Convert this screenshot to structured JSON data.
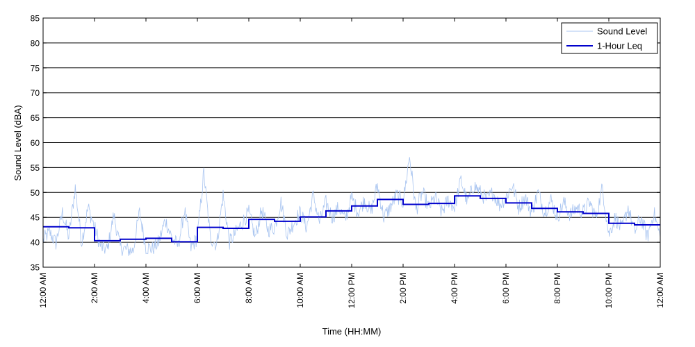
{
  "chart_data": {
    "type": "line",
    "title": "",
    "xlabel": "Time (HH:MM)",
    "ylabel": "Sound Level (dBA)",
    "ylim": [
      35,
      85
    ],
    "xlim": [
      0,
      24
    ],
    "yticks": [
      35,
      40,
      45,
      50,
      55,
      60,
      65,
      70,
      75,
      80,
      85
    ],
    "xticks": [
      0,
      2,
      4,
      6,
      8,
      10,
      12,
      14,
      16,
      18,
      20,
      22,
      24
    ],
    "xtick_labels": [
      "12:00 AM",
      "2:00 AM",
      "4:00 AM",
      "6:00 AM",
      "8:00 AM",
      "10:00 AM",
      "12:00 PM",
      "2:00 PM",
      "4:00 PM",
      "6:00 PM",
      "8:00 PM",
      "10:00 PM",
      "12:00 AM"
    ],
    "grid": "horizontal",
    "legend_position": "top-right",
    "series": [
      {
        "name": "Sound Level",
        "color": "#a8c4f0",
        "style": "thin-line",
        "x": [
          0.0,
          0.25,
          0.5,
          0.75,
          1.0,
          1.25,
          1.5,
          1.75,
          2.0,
          2.25,
          2.5,
          2.75,
          3.0,
          3.25,
          3.5,
          3.75,
          4.0,
          4.25,
          4.5,
          4.75,
          5.0,
          5.25,
          5.5,
          5.75,
          6.0,
          6.25,
          6.5,
          6.75,
          7.0,
          7.25,
          7.5,
          7.75,
          8.0,
          8.25,
          8.5,
          8.75,
          9.0,
          9.25,
          9.5,
          9.75,
          10.0,
          10.25,
          10.5,
          10.75,
          11.0,
          11.25,
          11.5,
          11.75,
          12.0,
          12.25,
          12.5,
          12.75,
          13.0,
          13.25,
          13.5,
          13.75,
          14.0,
          14.25,
          14.5,
          14.75,
          15.0,
          15.25,
          15.5,
          15.75,
          16.0,
          16.25,
          16.5,
          16.75,
          17.0,
          17.25,
          17.5,
          17.75,
          18.0,
          18.25,
          18.5,
          18.75,
          19.0,
          19.25,
          19.5,
          19.75,
          20.0,
          20.25,
          20.5,
          20.75,
          21.0,
          21.25,
          21.5,
          21.75,
          22.0,
          22.25,
          22.5,
          22.75,
          23.0,
          23.25,
          23.5,
          23.75,
          24.0
        ],
        "values": [
          40.5,
          42,
          39.8,
          46,
          41,
          51,
          40,
          47,
          43,
          39,
          38.5,
          45.5,
          39,
          38.5,
          38.3,
          46,
          39,
          38.7,
          40,
          44.5,
          41,
          39.2,
          46.5,
          38.8,
          41,
          54,
          41,
          39.5,
          49.5,
          40,
          42,
          44,
          46,
          41,
          46.5,
          42.5,
          43,
          48,
          41.5,
          44,
          46,
          43,
          49.5,
          44,
          48,
          45,
          47,
          44.5,
          49,
          46,
          48.5,
          46,
          51.5,
          45,
          47,
          49.5,
          48,
          57.3,
          46.5,
          50,
          47,
          49,
          46,
          48.5,
          47,
          52.5,
          48,
          51.5,
          50,
          48.5,
          50,
          47.5,
          49,
          51.5,
          47,
          49,
          46,
          50,
          46,
          48.5,
          45,
          48,
          45.5,
          47,
          46,
          48,
          45,
          51,
          41.5,
          45,
          42.5,
          47,
          42,
          45,
          41,
          46,
          41
        ]
      },
      {
        "name": "1-Hour Leq",
        "color": "#0000cc",
        "style": "step",
        "x": [
          0,
          1,
          2,
          3,
          4,
          5,
          6,
          7,
          8,
          9,
          10,
          11,
          12,
          13,
          14,
          15,
          16,
          17,
          18,
          19,
          20,
          21,
          22,
          23,
          24
        ],
        "values": [
          43.1,
          42.9,
          40.3,
          40.6,
          40.8,
          40.1,
          43.0,
          42.8,
          44.6,
          44.2,
          45.1,
          46.3,
          47.3,
          48.6,
          47.6,
          47.8,
          49.3,
          48.8,
          47.9,
          46.8,
          46.1,
          45.8,
          43.8,
          43.5,
          43.5
        ]
      }
    ]
  }
}
